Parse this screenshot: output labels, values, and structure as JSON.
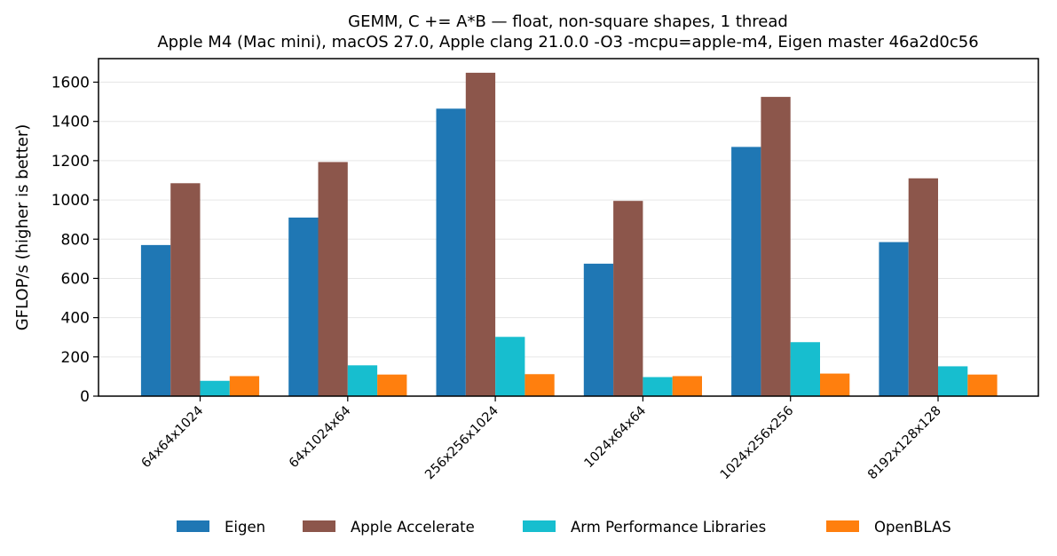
{
  "chart_data": {
    "type": "bar",
    "title": "GEMM, C += A*B — float, non-square shapes, 1 thread",
    "subtitle": "Apple M4 (Mac mini), macOS 27.0, Apple clang 21.0.0 -O3 -mcpu=apple-m4, Eigen master 46a2d0c56",
    "xlabel": "",
    "ylabel": "GFLOP/s (higher is better)",
    "ylim": [
      0,
      1720
    ],
    "yticks": [
      0,
      200,
      400,
      600,
      800,
      1000,
      1200,
      1400,
      1600
    ],
    "grid": "y",
    "legend_position": "bottom-center",
    "categories": [
      "64x64x1024",
      "64x1024x64",
      "256x256x1024",
      "1024x64x64",
      "1024x256x256",
      "8192x128x128"
    ],
    "series": [
      {
        "name": "Eigen",
        "color": "#1f77b4",
        "values": [
          770,
          910,
          1465,
          675,
          1270,
          785
        ]
      },
      {
        "name": "Apple Accelerate",
        "color": "#8c564b",
        "values": [
          1085,
          1193,
          1648,
          995,
          1525,
          1110
        ]
      },
      {
        "name": "Arm Performance Libraries",
        "color": "#17becf",
        "values": [
          78,
          157,
          302,
          97,
          275,
          152
        ]
      },
      {
        "name": "OpenBLAS",
        "color": "#ff7f0e",
        "values": [
          102,
          110,
          112,
          102,
          115,
          110
        ]
      }
    ]
  }
}
